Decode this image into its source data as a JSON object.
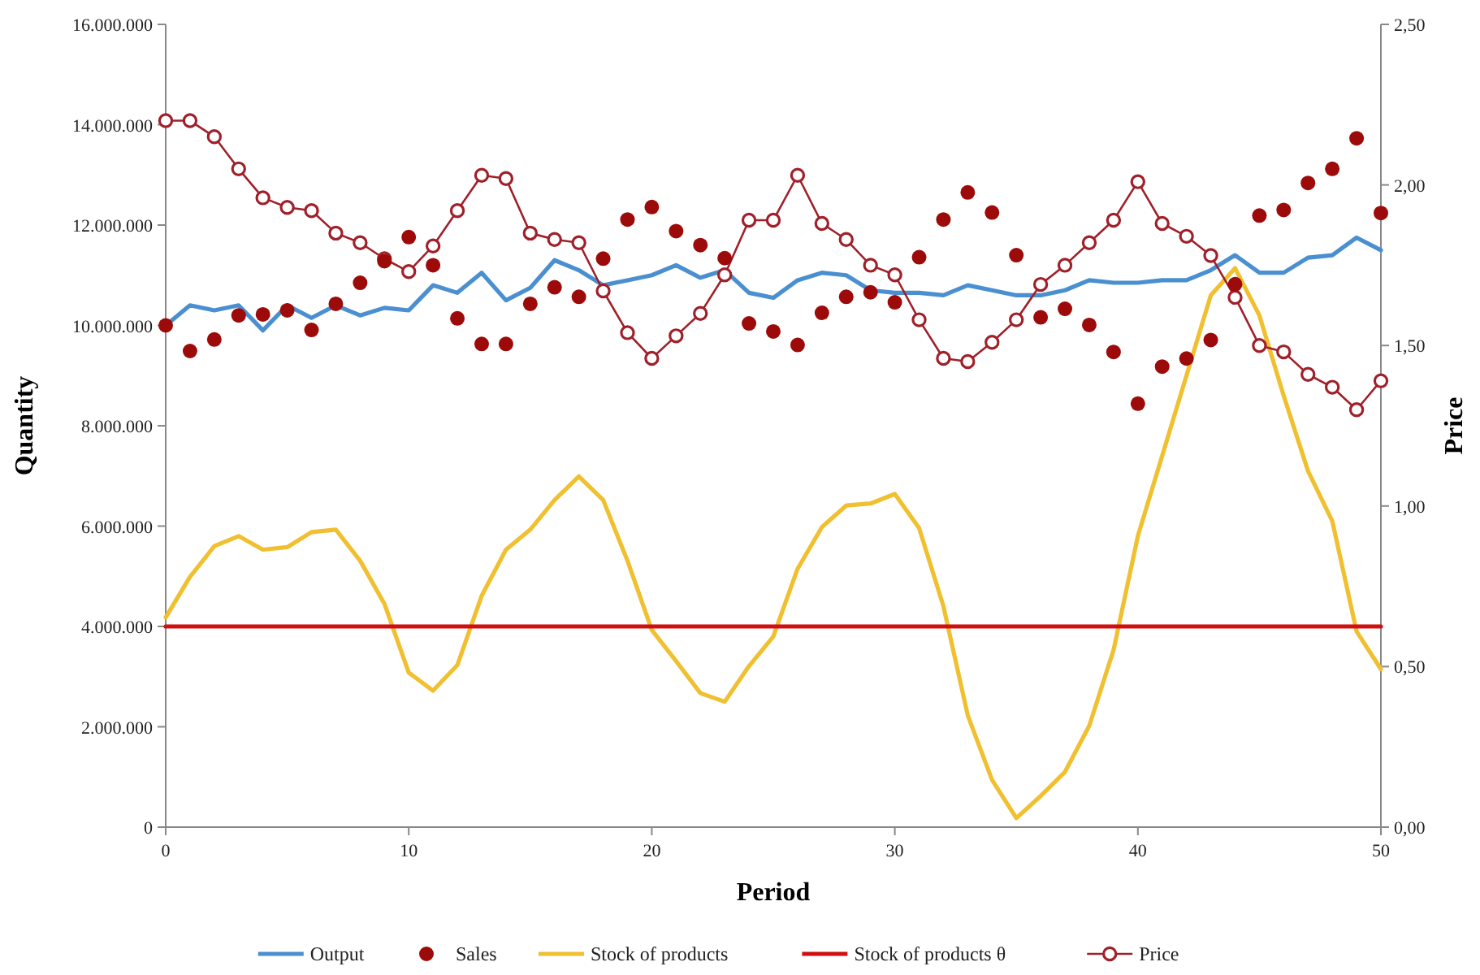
{
  "chart_data": {
    "type": "line",
    "xlabel": "Period",
    "ylabel": "Quantity",
    "y2label": "Price",
    "xlim": [
      0,
      50
    ],
    "xticks": [
      0,
      10,
      20,
      30,
      40,
      50
    ],
    "ylim": [
      0,
      16000000
    ],
    "yticks": [
      {
        "value": 0,
        "label": "0"
      },
      {
        "value": 2000000,
        "label": "2.000.000"
      },
      {
        "value": 4000000,
        "label": "4.000.000"
      },
      {
        "value": 6000000,
        "label": "6.000.000"
      },
      {
        "value": 8000000,
        "label": "8.000.000"
      },
      {
        "value": 10000000,
        "label": "10.000.000"
      },
      {
        "value": 12000000,
        "label": "12.000.000"
      },
      {
        "value": 14000000,
        "label": "14.000.000"
      },
      {
        "value": 16000000,
        "label": "16.000.000"
      }
    ],
    "y2lim": [
      0,
      2.5
    ],
    "y2ticks": [
      {
        "value": 0,
        "label": "0,00"
      },
      {
        "value": 0.5,
        "label": "0,50"
      },
      {
        "value": 1,
        "label": "1,00"
      },
      {
        "value": 1.5,
        "label": "1,50"
      },
      {
        "value": 2,
        "label": "2,00"
      },
      {
        "value": 2.5,
        "label": "2,50"
      }
    ],
    "legend": "bottom",
    "grid": false,
    "x": [
      0,
      1,
      2,
      3,
      4,
      5,
      6,
      7,
      8,
      9,
      10,
      11,
      12,
      13,
      14,
      15,
      16,
      17,
      18,
      19,
      20,
      21,
      22,
      23,
      24,
      25,
      26,
      27,
      28,
      29,
      30,
      31,
      32,
      33,
      34,
      35,
      36,
      37,
      38,
      39,
      40,
      41,
      42,
      43,
      44,
      45,
      46,
      47,
      48,
      49,
      50
    ],
    "series": [
      {
        "name": "Output",
        "color": "#4a8fd0",
        "marker": "none",
        "values": [
          10000000,
          10400000,
          10300000,
          10400000,
          9900000,
          10400000,
          10150000,
          10400000,
          10200000,
          10350000,
          10300000,
          10800000,
          10650000,
          11050000,
          10500000,
          10750000,
          11300000,
          11100000,
          10800000,
          10900000,
          11000000,
          11200000,
          10950000,
          11100000,
          10650000,
          10550000,
          10900000,
          11050000,
          11000000,
          10700000,
          10650000,
          10650000,
          10600000,
          10800000,
          10700000,
          10600000,
          10600000,
          10700000,
          10900000,
          10850000,
          10850000,
          10900000,
          10900000,
          11100000,
          11400000,
          11050000,
          11050000,
          11350000,
          11400000,
          11750000,
          11500000
        ]
      },
      {
        "name": "Sales",
        "type": "scatter",
        "color": "#9c0a0a",
        "marker": "circle",
        "values": [
          10000000,
          9490000,
          9720000,
          10200000,
          10220000,
          10300000,
          9910000,
          10430000,
          10850000,
          11280000,
          11760000,
          11200000,
          10140000,
          9630000,
          9630000,
          10430000,
          10760000,
          10570000,
          11330000,
          12110000,
          12360000,
          11880000,
          11600000,
          11340000,
          10040000,
          9880000,
          9610000,
          10250000,
          10570000,
          10660000,
          10460000,
          11360000,
          12110000,
          12650000,
          12250000,
          11400000,
          10160000,
          10330000,
          10010000,
          9470000,
          8440000,
          9180000,
          9340000,
          9710000,
          10820000,
          12190000,
          12300000,
          12840000,
          13120000,
          13730000,
          12240000
        ]
      },
      {
        "name": "Stock of products",
        "color": "#f0c030",
        "marker": "none",
        "values": [
          4180000,
          4990000,
          5600000,
          5800000,
          5530000,
          5580000,
          5880000,
          5930000,
          5310000,
          4450000,
          3080000,
          2720000,
          3230000,
          4610000,
          5530000,
          5930000,
          6520000,
          6990000,
          6520000,
          5310000,
          3930000,
          3310000,
          2670000,
          2500000,
          3210000,
          3800000,
          5150000,
          5980000,
          6410000,
          6450000,
          6640000,
          5960000,
          4400000,
          2230000,
          940000,
          180000,
          620000,
          1100000,
          2020000,
          3530000,
          5800000,
          7400000,
          9000000,
          10600000,
          11140000,
          10200000,
          8600000,
          7100000,
          6100000,
          3900000,
          3150000
        ]
      },
      {
        "name": "Stock of products θ",
        "color": "#d01010",
        "marker": "none",
        "x": [
          0,
          50
        ],
        "values": [
          4000000,
          4000000
        ]
      },
      {
        "name": "Price",
        "axis": "y2",
        "color": "#a0202a",
        "marker": "circle",
        "values": [
          2.2,
          2.2,
          2.15,
          2.05,
          1.96,
          1.93,
          1.92,
          1.85,
          1.82,
          1.77,
          1.73,
          1.81,
          1.92,
          2.03,
          2.02,
          1.85,
          1.83,
          1.82,
          1.67,
          1.54,
          1.46,
          1.53,
          1.6,
          1.72,
          1.89,
          1.89,
          2.03,
          1.88,
          1.83,
          1.75,
          1.72,
          1.58,
          1.46,
          1.45,
          1.51,
          1.58,
          1.69,
          1.75,
          1.82,
          1.89,
          2.01,
          1.88,
          1.84,
          1.78,
          1.65,
          1.5,
          1.48,
          1.41,
          1.37,
          1.3,
          1.39
        ]
      }
    ]
  }
}
